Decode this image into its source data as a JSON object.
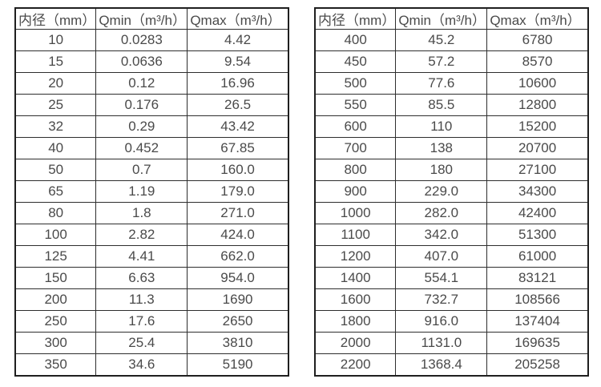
{
  "page": {
    "background_color": "#ffffff",
    "text_color": "#4a4a4a",
    "border_color": "#1f1f1f"
  },
  "tables": [
    {
      "name": "flow-rate-table-small-diameters",
      "headers": [
        "内径（mm）",
        "Qmin（m³/h）",
        "Qmax（m³/h）"
      ],
      "rows": [
        [
          "10",
          "0.0283",
          "4.42"
        ],
        [
          "15",
          "0.0636",
          "9.54"
        ],
        [
          "20",
          "0.12",
          "16.96"
        ],
        [
          "25",
          "0.176",
          "26.5"
        ],
        [
          "32",
          "0.29",
          "43.42"
        ],
        [
          "40",
          "0.452",
          "67.85"
        ],
        [
          "50",
          "0.7",
          "160.0"
        ],
        [
          "65",
          "1.19",
          "179.0"
        ],
        [
          "80",
          "1.8",
          "271.0"
        ],
        [
          "100",
          "2.82",
          "424.0"
        ],
        [
          "125",
          "4.41",
          "662.0"
        ],
        [
          "150",
          "6.63",
          "954.0"
        ],
        [
          "200",
          "11.3",
          "1690"
        ],
        [
          "250",
          "17.6",
          "2650"
        ],
        [
          "300",
          "25.4",
          "3810"
        ],
        [
          "350",
          "34.6",
          "5190"
        ]
      ]
    },
    {
      "name": "flow-rate-table-large-diameters",
      "headers": [
        "内径（mm）",
        "Qmin（m³/h）",
        "Qmax（m³/h）"
      ],
      "rows": [
        [
          "400",
          "45.2",
          "6780"
        ],
        [
          "450",
          "57.2",
          "8570"
        ],
        [
          "500",
          "77.6",
          "10600"
        ],
        [
          "550",
          "85.5",
          "12800"
        ],
        [
          "600",
          "110",
          "15200"
        ],
        [
          "700",
          "138",
          "20700"
        ],
        [
          "800",
          "180",
          "27100"
        ],
        [
          "900",
          "229.0",
          "34300"
        ],
        [
          "1000",
          "282.0",
          "42400"
        ],
        [
          "1100",
          "342.0",
          "51300"
        ],
        [
          "1200",
          "407.0",
          "61000"
        ],
        [
          "1400",
          "554.1",
          "83121"
        ],
        [
          "1600",
          "732.7",
          "108566"
        ],
        [
          "1800",
          "916.0",
          "137404"
        ],
        [
          "2000",
          "1131.0",
          "169635"
        ],
        [
          "2200",
          "1368.4",
          "205258"
        ]
      ]
    }
  ]
}
